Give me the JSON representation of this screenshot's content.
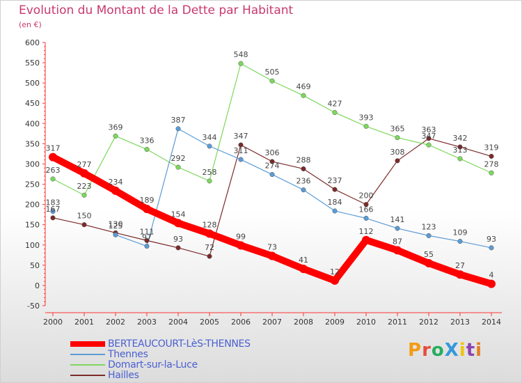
{
  "header": {
    "title": "Evolution du Montant de la Dette par Habitant",
    "subtitle": "(en €)"
  },
  "logo": {
    "text": "ProXiti",
    "colors": [
      "#f39c12",
      "#e74c3c",
      "#27ae60",
      "#3498db",
      "#f1c40f",
      "#8e44ad",
      "#e67e22"
    ]
  },
  "chart_data": {
    "type": "line",
    "title": "Evolution du Montant de la Dette par Habitant",
    "subtitle": "(en €)",
    "x": [
      "2000",
      "2001",
      "2002",
      "2003",
      "2004",
      "2005",
      "2006",
      "2007",
      "2008",
      "2009",
      "2010",
      "2011",
      "2012",
      "2013",
      "2014"
    ],
    "ylim": [
      -50,
      600
    ],
    "yticks": [
      "-50",
      "0",
      "50",
      "100",
      "150",
      "200",
      "250",
      "300",
      "350",
      "400",
      "450",
      "500",
      "550",
      "600"
    ],
    "grid": false,
    "legend": "bottom-left",
    "series": [
      {
        "name": "BERTEAUCOURT-LèS-THENNES",
        "color": "#ff0000",
        "width": 10,
        "values": [
          317,
          277,
          234,
          189,
          154,
          128,
          99,
          73,
          41,
          12,
          112,
          87,
          55,
          27,
          4
        ]
      },
      {
        "name": "Thennes",
        "color": "#5b9bd5",
        "width": 1.2,
        "values": [
          183,
          null,
          125,
          97,
          387,
          344,
          311,
          274,
          236,
          184,
          166,
          141,
          123,
          109,
          93
        ]
      },
      {
        "name": "Domart-sur-la-Luce",
        "color": "#7cd85c",
        "width": 1.2,
        "values": [
          263,
          223,
          369,
          336,
          292,
          258,
          548,
          505,
          469,
          427,
          393,
          365,
          347,
          313,
          278
        ]
      },
      {
        "name": "Hailles",
        "color": "#7b2a2a",
        "width": 1.2,
        "values": [
          167,
          150,
          130,
          111,
          93,
          72,
          347,
          306,
          288,
          237,
          200,
          308,
          363,
          342,
          319
        ]
      }
    ],
    "point_labels": [
      {
        "series": 0,
        "labels": [
          "317",
          "277",
          "234",
          "189",
          "154",
          "128",
          "99",
          "73",
          "41",
          "12",
          "112",
          "87",
          "55",
          "27",
          "4"
        ]
      },
      {
        "series": 1,
        "labels": [
          "183",
          "",
          "125",
          "97",
          "387",
          "344",
          "311",
          "274",
          "236",
          "184",
          "166",
          "141",
          "123",
          "109",
          "93"
        ]
      },
      {
        "series": 2,
        "labels": [
          "263",
          "223",
          "369",
          "336",
          "292",
          "258",
          "548",
          "505",
          "469",
          "427",
          "393",
          "365",
          "347",
          "313",
          "278"
        ]
      },
      {
        "series": 3,
        "labels": [
          "167",
          "150",
          "130",
          "111",
          "93",
          "72",
          "347",
          "306",
          "288",
          "237",
          "200",
          "308",
          "363",
          "342",
          "319"
        ]
      }
    ]
  }
}
